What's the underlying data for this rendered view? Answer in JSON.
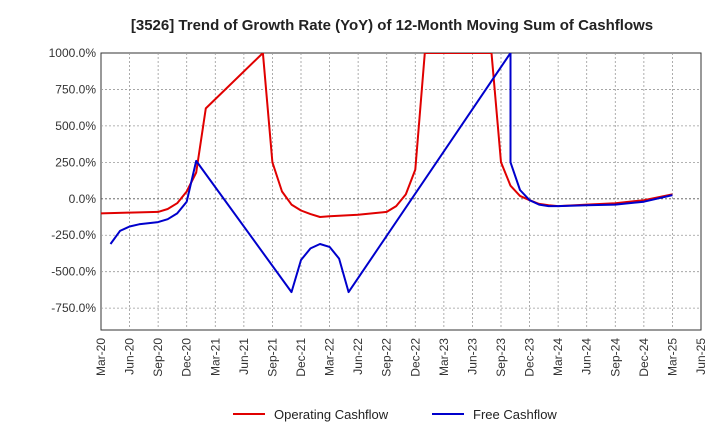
{
  "chart_data": {
    "type": "line",
    "title": "[3526]  Trend of Growth Rate (YoY) of 12-Month Moving Sum of Cashflows",
    "xlabel": "",
    "ylabel": "",
    "ylim": [
      -900,
      1000
    ],
    "y_ticks": [
      "1000.0%",
      "750.0%",
      "500.0%",
      "250.0%",
      "0.0%",
      "-250.0%",
      "-500.0%",
      "-750.0%"
    ],
    "y_tick_values": [
      1000,
      750,
      500,
      250,
      0,
      -250,
      -500,
      -750
    ],
    "x_ticks": [
      "Mar-20",
      "Jun-20",
      "Sep-20",
      "Dec-20",
      "Mar-21",
      "Jun-21",
      "Sep-21",
      "Dec-21",
      "Mar-22",
      "Jun-22",
      "Sep-22",
      "Dec-22",
      "Mar-23",
      "Jun-23",
      "Sep-23",
      "Dec-23",
      "Mar-24",
      "Jun-24",
      "Sep-24",
      "Dec-24",
      "Mar-25",
      "Jun-25"
    ],
    "grid": true,
    "legend": "bottom",
    "series": [
      {
        "name": "Operating Cashflow",
        "color": "#e00000",
        "points": [
          [
            "Mar-20",
            -100
          ],
          [
            "Jun-20",
            -95
          ],
          [
            "Sep-20",
            -90
          ],
          [
            "Oct-20",
            -70
          ],
          [
            "Nov-20",
            -30
          ],
          [
            "Dec-20",
            50
          ],
          [
            "Jan-21",
            180
          ],
          [
            "Feb-21",
            620
          ],
          [
            "Aug-21",
            1000
          ],
          [
            "Sep-21",
            250
          ],
          [
            "Oct-21",
            50
          ],
          [
            "Nov-21",
            -40
          ],
          [
            "Dec-21",
            -80
          ],
          [
            "Jan-22",
            -105
          ],
          [
            "Feb-22",
            -125
          ],
          [
            "Mar-22",
            -120
          ],
          [
            "Jun-22",
            -110
          ],
          [
            "Sep-22",
            -90
          ],
          [
            "Oct-22",
            -50
          ],
          [
            "Nov-22",
            30
          ],
          [
            "Dec-22",
            200
          ],
          [
            "Jan-23",
            1000
          ],
          [
            "Aug-23",
            1000
          ],
          [
            "Sep-23",
            250
          ],
          [
            "Oct-23",
            90
          ],
          [
            "Nov-23",
            20
          ],
          [
            "Dec-23",
            -10
          ],
          [
            "Jan-24",
            -35
          ],
          [
            "Feb-24",
            -45
          ],
          [
            "Mar-24",
            -50
          ],
          [
            "Jun-24",
            -40
          ],
          [
            "Sep-24",
            -30
          ],
          [
            "Dec-24",
            -10
          ],
          [
            "Mar-25",
            30
          ]
        ]
      },
      {
        "name": "Free Cashflow",
        "color": "#0000cc",
        "points": [
          [
            "Apr-20",
            -310
          ],
          [
            "May-20",
            -220
          ],
          [
            "Jun-20",
            -190
          ],
          [
            "Jul-20",
            -175
          ],
          [
            "Sep-20",
            -160
          ],
          [
            "Oct-20",
            -140
          ],
          [
            "Nov-20",
            -100
          ],
          [
            "Dec-20",
            -20
          ],
          [
            "Jan-21",
            260
          ],
          [
            "Nov-21",
            -640
          ],
          [
            "Dec-21",
            -420
          ],
          [
            "Jan-22",
            -340
          ],
          [
            "Feb-22",
            -310
          ],
          [
            "Mar-22",
            -330
          ],
          [
            "Apr-22",
            -410
          ],
          [
            "May-22",
            -640
          ],
          [
            "Oct-23",
            1000
          ],
          [
            "Oct-23",
            250
          ],
          [
            "Nov-23",
            60
          ],
          [
            "Dec-23",
            -10
          ],
          [
            "Jan-24",
            -40
          ],
          [
            "Feb-24",
            -50
          ],
          [
            "Mar-24",
            -50
          ],
          [
            "Jun-24",
            -45
          ],
          [
            "Sep-24",
            -40
          ],
          [
            "Dec-24",
            -20
          ],
          [
            "Mar-25",
            25
          ]
        ]
      }
    ]
  }
}
